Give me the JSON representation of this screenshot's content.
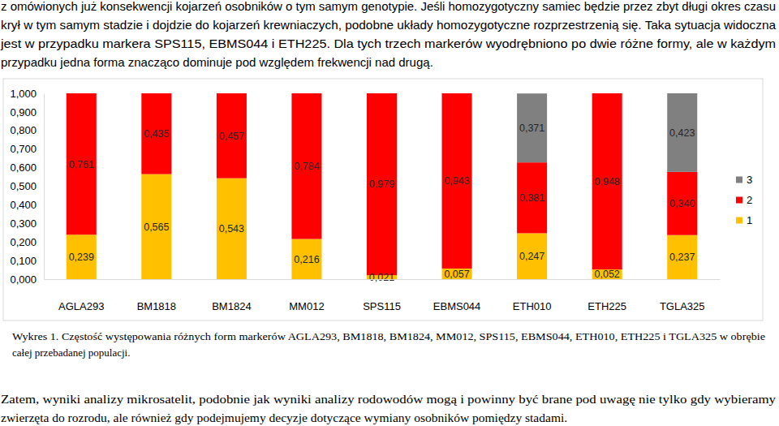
{
  "top_text": {
    "lines": [
      "z omówionych już konsekwencji kojarzeń osobników o tym samym genotypie. Jeśli homozygotyczny samiec będzie przez zbyt długi okres czasu",
      "krył w tym samym stadzie i dojdzie do kojarzeń krewniaczych, podobne układy homozygotyczne rozprzestrzenią się. Taka sytuacja widoczna",
      "jest w przypadku markera SPS115, EBMS044 i ETH225. Dla tych trzech markerów wyodrębniono po dwie różne formy, ale w każdym",
      "przypadku jedna forma znacząco dominuje pod względem frekwencji nad drugą."
    ]
  },
  "chart_data": {
    "type": "bar",
    "stacked": true,
    "data_labels": true,
    "grid": false,
    "legend": "right",
    "categories": [
      "AGLA293",
      "BM1818",
      "BM1824",
      "MM012",
      "SPS115",
      "EBMS044",
      "ETH010",
      "ETH225",
      "TGLA325"
    ],
    "series": [
      {
        "name": "1",
        "color": "#ffc000",
        "values": [
          0.239,
          0.565,
          0.543,
          0.216,
          0.021,
          0.057,
          0.247,
          0.052,
          0.237
        ],
        "value_labels": [
          "0,239",
          "0,565",
          "0,543",
          "0,216",
          "0,021",
          "0,057",
          "0,247",
          "0,052",
          "0,237"
        ]
      },
      {
        "name": "2",
        "color": "#ff0000",
        "values": [
          0.761,
          0.435,
          0.457,
          0.784,
          0.979,
          0.943,
          0.381,
          0.948,
          0.34
        ],
        "value_labels": [
          "0,761",
          "0,435",
          "0,457",
          "0,784",
          "0,979",
          "0,943",
          "0,381",
          "0,948",
          "0,340"
        ]
      },
      {
        "name": "3",
        "color": "#808080",
        "values": [
          null,
          null,
          null,
          null,
          null,
          null,
          0.371,
          null,
          0.423
        ],
        "value_labels": [
          null,
          null,
          null,
          null,
          null,
          null,
          "0,371",
          null,
          "0,423"
        ]
      }
    ],
    "ylim": [
      0,
      1
    ],
    "yticks": [
      {
        "value": 0,
        "label": "0,000"
      },
      {
        "value": 0.1,
        "label": "0,100"
      },
      {
        "value": 0.2,
        "label": "0,200"
      },
      {
        "value": 0.3,
        "label": "0,300"
      },
      {
        "value": 0.4,
        "label": "0,400"
      },
      {
        "value": 0.5,
        "label": "0,500"
      },
      {
        "value": 0.6,
        "label": "0,600"
      },
      {
        "value": 0.7,
        "label": "0,700"
      },
      {
        "value": 0.8,
        "label": "0,800"
      },
      {
        "value": 0.9,
        "label": "0,900"
      },
      {
        "value": 1,
        "label": "1,000"
      }
    ]
  },
  "caption": {
    "lines": [
      "Wykres 1. Częstość występowania różnych form markerów AGLA293, BM1818, BM1824, MM012, SPS115, EBMS044, ETH010, ETH225 i TGLA325 w obrębie",
      "całej przebadanej populacji."
    ]
  },
  "bottom_text": {
    "lines": [
      "Zatem, wyniki analizy mikrosatelit, podobnie jak wyniki analizy rodowodów mogą i powinny być brane pod uwagę nie tylko gdy wybieramy",
      "zwierzęta do rozrodu, ale również gdy podejmujemy decyzje dotyczące wymiany osobników pomiędzy stadami."
    ]
  }
}
